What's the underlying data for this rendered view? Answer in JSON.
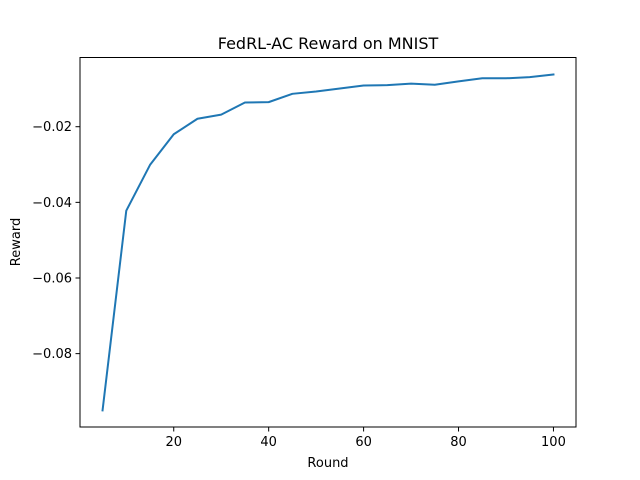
{
  "chart_data": {
    "type": "line",
    "title": "FedRL-AC Reward on MNIST",
    "xlabel": "Round",
    "ylabel": "Reward",
    "xlim": [
      0.25,
      104.75
    ],
    "ylim": [
      -0.0994,
      -0.0017
    ],
    "xticks": [
      20,
      40,
      60,
      80,
      100
    ],
    "xtick_labels": [
      "20",
      "40",
      "60",
      "80",
      "100"
    ],
    "yticks": [
      -0.08,
      -0.06,
      -0.04,
      -0.02
    ],
    "ytick_labels": [
      "−0.08",
      "−0.06",
      "−0.04",
      "−0.02"
    ],
    "grid": false,
    "legend": "none",
    "series": [
      {
        "color": "#1f77b4",
        "x": [
          5,
          10,
          15,
          20,
          25,
          30,
          35,
          40,
          45,
          50,
          55,
          60,
          65,
          70,
          75,
          80,
          85,
          90,
          95,
          100
        ],
        "values": [
          -0.095,
          -0.0422,
          -0.0301,
          -0.022,
          -0.0179,
          -0.0168,
          -0.0136,
          -0.0135,
          -0.0113,
          -0.0107,
          -0.0099,
          -0.0091,
          -0.009,
          -0.0086,
          -0.0089,
          -0.008,
          -0.0072,
          -0.0072,
          -0.0069,
          -0.0062
        ]
      }
    ]
  }
}
